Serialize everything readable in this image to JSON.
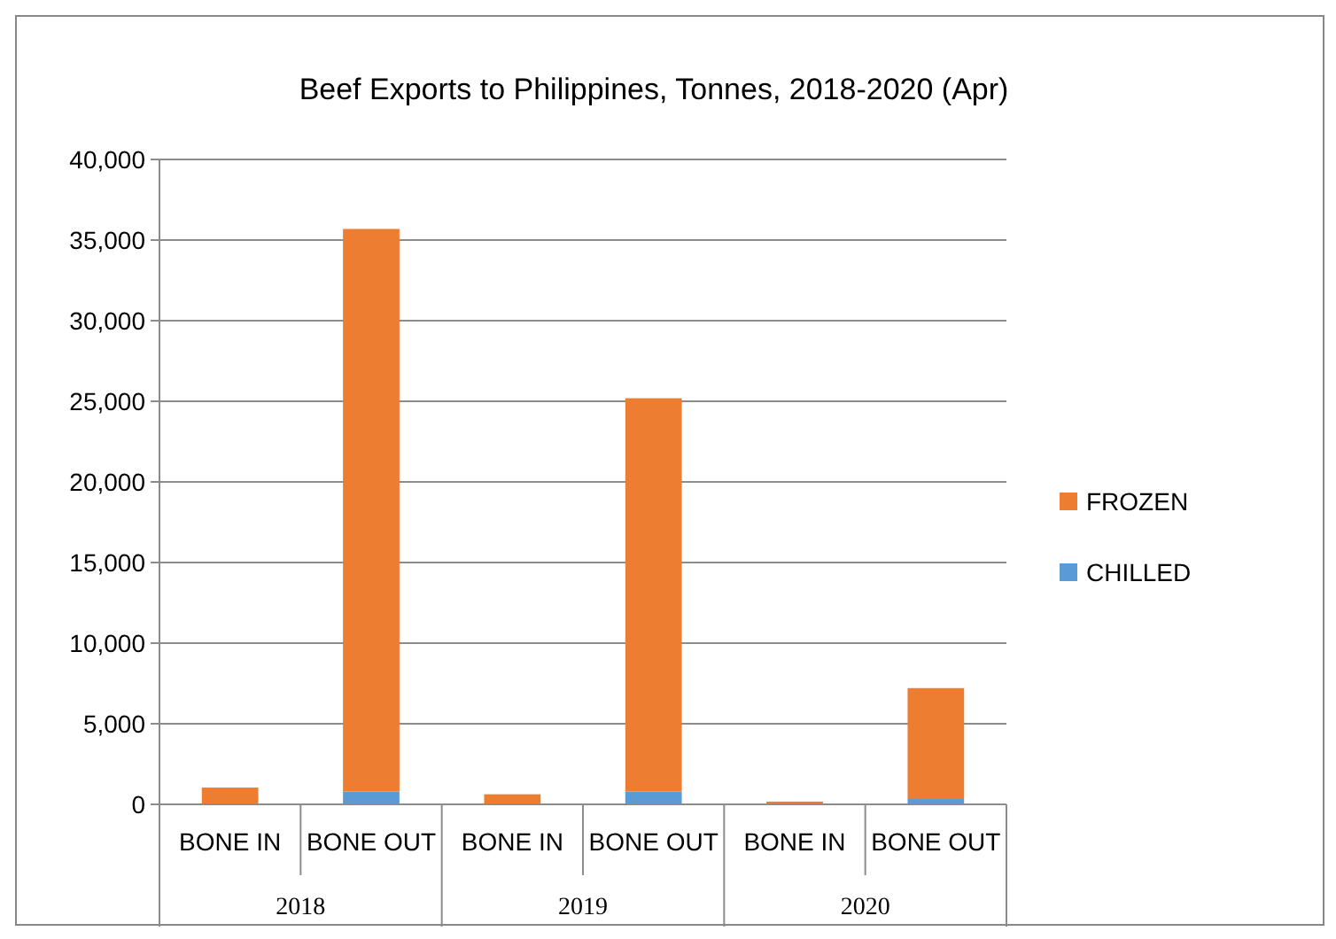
{
  "chart_data": {
    "type": "bar",
    "title": "Beef Exports to Philippines, Tonnes, 2018-2020 (Apr)",
    "categories": [
      "BONE IN",
      "BONE OUT",
      "BONE IN",
      "BONE OUT",
      "BONE IN",
      "BONE OUT"
    ],
    "annotations": [
      "2018",
      "2019",
      "2020"
    ],
    "series": [
      {
        "name": "CHILLED",
        "color": "#5b9bd5",
        "values": [
          0,
          790,
          0,
          790,
          0,
          330
        ]
      },
      {
        "name": "FROZEN",
        "color": "#ed7d31",
        "values": [
          1040,
          34900,
          625,
          24400,
          170,
          6880
        ]
      }
    ],
    "stacked": true,
    "ylim": [
      0,
      40000
    ],
    "yticks": [
      {
        "value": 0,
        "label": "0"
      },
      {
        "value": 5000,
        "label": "5,000"
      },
      {
        "value": 10000,
        "label": "10,000"
      },
      {
        "value": 15000,
        "label": "15,000"
      },
      {
        "value": 20000,
        "label": "20,000"
      },
      {
        "value": 25000,
        "label": "25,000"
      },
      {
        "value": 30000,
        "label": "30,000"
      },
      {
        "value": 35000,
        "label": "35,000"
      },
      {
        "value": 40000,
        "label": "40,000"
      }
    ],
    "grid": "y",
    "legend": "right"
  }
}
